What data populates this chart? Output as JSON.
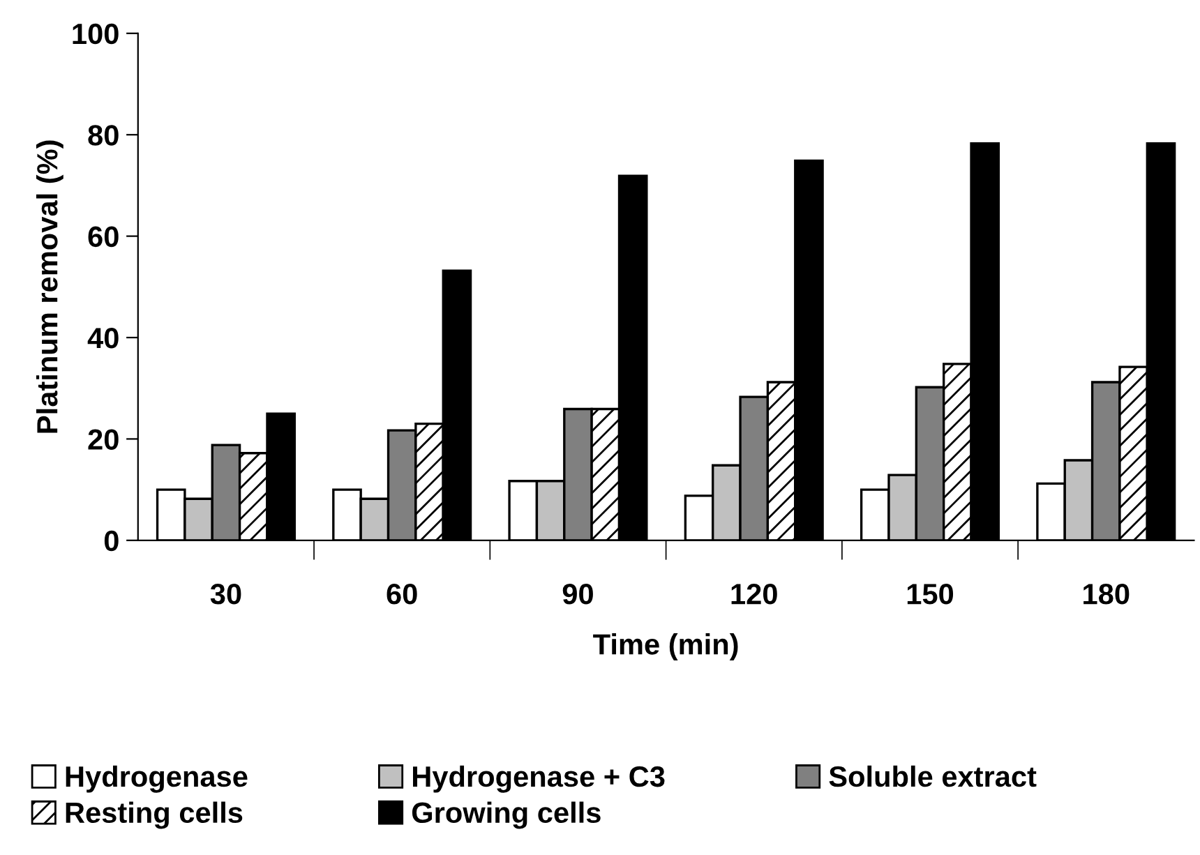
{
  "chart_data": {
    "type": "bar",
    "xlabel": "Time (min)",
    "ylabel": "Platinum removal (%)",
    "categories": [
      "30",
      "60",
      "90",
      "120",
      "150",
      "180"
    ],
    "series": [
      {
        "name": "Hydrogenase",
        "color": "#ffffff",
        "values": [
          10.0,
          10.0,
          11.7,
          8.8,
          10.0,
          11.2
        ]
      },
      {
        "name": "Hydrogenase + C3",
        "color": "#c0c0c0",
        "values": [
          8.2,
          8.2,
          11.7,
          14.8,
          12.9,
          15.8
        ]
      },
      {
        "name": "Soluble extract",
        "color": "#808080",
        "values": [
          18.8,
          21.7,
          25.9,
          28.3,
          30.2,
          31.2
        ]
      },
      {
        "name": "Resting cells",
        "color": "#ffffff",
        "values": [
          17.2,
          23.0,
          25.9,
          31.2,
          34.8,
          34.2
        ]
      },
      {
        "name": "Growing cells",
        "color": "#000000",
        "values": [
          25.0,
          53.2,
          71.9,
          74.9,
          78.3,
          78.3
        ]
      }
    ],
    "ylim": [
      0,
      100
    ],
    "yticks": [
      0,
      20,
      40,
      60,
      80,
      100
    ],
    "grid": false,
    "legend": "bottom"
  }
}
